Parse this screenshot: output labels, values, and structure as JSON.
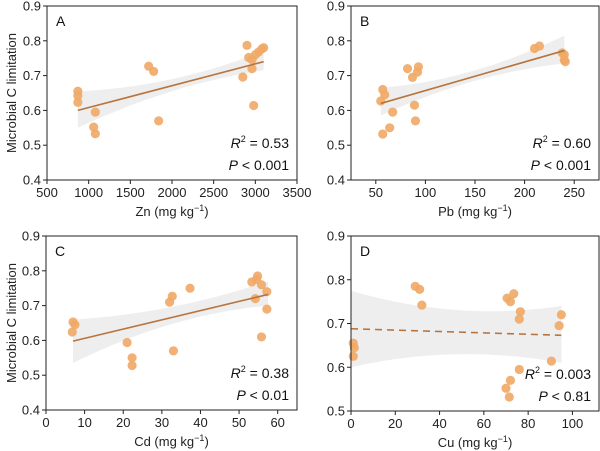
{
  "chart_data": [
    {
      "type": "scatter",
      "panel": "A",
      "xlabel": "Zn (mg kg",
      "xlabel_sup": "−1",
      "ylabel": "Microbial C limitation",
      "xlim": [
        500,
        3500
      ],
      "ylim": [
        0.4,
        0.9
      ],
      "xticks": [
        500,
        1000,
        1500,
        2000,
        2500,
        3000,
        3500
      ],
      "yticks": [
        0.4,
        0.5,
        0.6,
        0.7,
        0.8,
        0.9
      ],
      "points": [
        [
          870,
          0.655
        ],
        [
          870,
          0.642
        ],
        [
          870,
          0.623
        ],
        [
          1080,
          0.595
        ],
        [
          1060,
          0.552
        ],
        [
          1080,
          0.533
        ],
        [
          1720,
          0.727
        ],
        [
          1780,
          0.712
        ],
        [
          1840,
          0.57
        ],
        [
          2850,
          0.696
        ],
        [
          2900,
          0.787
        ],
        [
          2920,
          0.752
        ],
        [
          2960,
          0.72
        ],
        [
          2980,
          0.614
        ],
        [
          3000,
          0.76
        ],
        [
          3040,
          0.768
        ],
        [
          3080,
          0.777
        ],
        [
          3100,
          0.78
        ],
        [
          2960,
          0.746
        ]
      ],
      "fit": {
        "x": [
          870,
          3100
        ],
        "y": [
          0.6,
          0.74
        ],
        "dashed": false
      },
      "ci": {
        "x": [
          870,
          2000,
          3100
        ],
        "lower": [
          0.55,
          0.655,
          0.715
        ],
        "upper": [
          0.655,
          0.69,
          0.77
        ]
      },
      "r2_label": "R",
      "r2_value": " = 0.53",
      "p_label": "P",
      "p_value": " < 0.001"
    },
    {
      "type": "scatter",
      "panel": "B",
      "xlabel": "Pb (mg kg",
      "xlabel_sup": "−1",
      "ylabel": "",
      "xlim": [
        25,
        275
      ],
      "ylim": [
        0.4,
        0.9
      ],
      "xticks": [
        50,
        100,
        150,
        200,
        250
      ],
      "yticks": [
        0.4,
        0.5,
        0.6,
        0.7,
        0.8,
        0.9
      ],
      "points": [
        [
          55,
          0.627
        ],
        [
          57,
          0.66
        ],
        [
          59,
          0.645
        ],
        [
          57,
          0.532
        ],
        [
          64,
          0.55
        ],
        [
          67,
          0.595
        ],
        [
          82,
          0.72
        ],
        [
          87,
          0.695
        ],
        [
          89,
          0.615
        ],
        [
          90,
          0.57
        ],
        [
          92,
          0.71
        ],
        [
          93,
          0.725
        ],
        [
          210,
          0.778
        ],
        [
          215,
          0.785
        ],
        [
          240,
          0.76
        ],
        [
          240,
          0.745
        ],
        [
          241,
          0.74
        ],
        [
          238,
          0.765
        ]
      ],
      "fit": {
        "x": [
          55,
          240
        ],
        "y": [
          0.62,
          0.772
        ],
        "dashed": false
      },
      "ci": {
        "x": [
          55,
          150,
          240
        ],
        "lower": [
          0.585,
          0.685,
          0.735
        ],
        "upper": [
          0.665,
          0.715,
          0.815
        ]
      },
      "r2_label": "R",
      "r2_value": " = 0.60",
      "p_label": "P",
      "p_value": " < 0.001"
    },
    {
      "type": "scatter",
      "panel": "C",
      "xlabel": "Cd (mg kg",
      "xlabel_sup": "−1",
      "ylabel": "Microbial C limitation",
      "xlim": [
        0,
        65
      ],
      "ylim": [
        0.4,
        0.9
      ],
      "xticks": [
        0,
        10,
        20,
        30,
        40,
        50,
        60
      ],
      "yticks": [
        0.4,
        0.5,
        0.6,
        0.7,
        0.8,
        0.9
      ],
      "points": [
        [
          7,
          0.653
        ],
        [
          7.5,
          0.645
        ],
        [
          6.8,
          0.624
        ],
        [
          21,
          0.594
        ],
        [
          22.3,
          0.55
        ],
        [
          22.3,
          0.528
        ],
        [
          32,
          0.71
        ],
        [
          32.7,
          0.727
        ],
        [
          33,
          0.57
        ],
        [
          37.3,
          0.75
        ],
        [
          53.3,
          0.768
        ],
        [
          54.5,
          0.775
        ],
        [
          54.8,
          0.785
        ],
        [
          55.8,
          0.76
        ],
        [
          57.2,
          0.74
        ],
        [
          54.2,
          0.72
        ],
        [
          57.2,
          0.69
        ],
        [
          55.8,
          0.61
        ]
      ],
      "fit": {
        "x": [
          7,
          57.5
        ],
        "y": [
          0.598,
          0.732
        ],
        "dashed": false
      },
      "ci": {
        "x": [
          7,
          32,
          57.5
        ],
        "lower": [
          0.535,
          0.645,
          0.7
        ],
        "upper": [
          0.66,
          0.695,
          0.77
        ]
      },
      "r2_label": "R",
      "r2_value": " = 0.38",
      "p_label": "P",
      "p_value": " < 0.01"
    },
    {
      "type": "scatter",
      "panel": "D",
      "xlabel": "Cu (mg kg",
      "xlabel_sup": "−1",
      "ylabel": "",
      "xlim": [
        0,
        112
      ],
      "ylim": [
        0.5,
        0.9
      ],
      "xticks": [
        0,
        20,
        40,
        60,
        80,
        100
      ],
      "yticks": [
        0.5,
        0.6,
        0.7,
        0.8,
        0.9
      ],
      "points": [
        [
          29,
          0.785
        ],
        [
          31,
          0.778
        ],
        [
          32,
          0.742
        ],
        [
          1,
          0.655
        ],
        [
          1.5,
          0.645
        ],
        [
          1,
          0.625
        ],
        [
          70.5,
          0.758
        ],
        [
          72,
          0.75
        ],
        [
          73.5,
          0.768
        ],
        [
          76,
          0.71
        ],
        [
          76.5,
          0.727
        ],
        [
          76,
          0.595
        ],
        [
          72,
          0.57
        ],
        [
          70,
          0.552
        ],
        [
          71.5,
          0.532
        ],
        [
          90.5,
          0.614
        ],
        [
          94,
          0.695
        ],
        [
          95,
          0.72
        ]
      ],
      "fit": {
        "x": [
          0,
          95
        ],
        "y": [
          0.688,
          0.673
        ],
        "dashed": true
      },
      "ci": {
        "x": [
          0,
          50,
          95
        ],
        "lower": [
          0.6,
          0.63,
          0.61
        ],
        "upper": [
          0.775,
          0.73,
          0.74
        ]
      },
      "r2_label": "R",
      "r2_value": " = 0.003",
      "p_label": "P",
      "p_value": " < 0.81"
    }
  ],
  "colors": {
    "points": "#f0a866",
    "fit": "#b8743e",
    "ci": "#ebebeb",
    "axis": "#222222"
  }
}
